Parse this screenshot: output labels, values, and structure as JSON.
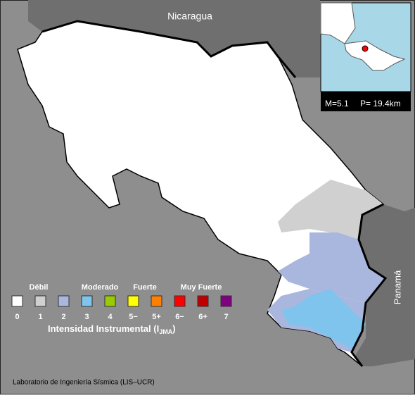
{
  "map": {
    "countries": [
      "Nicaragua",
      "Panamá"
    ]
  },
  "inset": {
    "magnitude": "M=5.1",
    "depth": "P= 19.4km"
  },
  "legend": {
    "groups": [
      "Débil",
      "Moderado",
      "Fuerte",
      "Muy Fuerte"
    ],
    "levels": [
      {
        "label": "0",
        "color": "#ffffff"
      },
      {
        "label": "1",
        "color": "#d0d0d0"
      },
      {
        "label": "2",
        "color": "#a9b7de"
      },
      {
        "label": "3",
        "color": "#7fc4ec"
      },
      {
        "label": "4",
        "color": "#99cc00"
      },
      {
        "label": "5−",
        "color": "#ffff00"
      },
      {
        "label": "5+",
        "color": "#ff8000"
      },
      {
        "label": "6−",
        "color": "#ff0000"
      },
      {
        "label": "6+",
        "color": "#c00000"
      },
      {
        "label": "7",
        "color": "#800080"
      }
    ],
    "title_prefix": "Intensidad Instrumental (I",
    "title_sub": "JMA",
    "title_suffix": ")"
  },
  "credit": "Laboratorio de Ingeniería Sísmica (LIS–UCR)"
}
